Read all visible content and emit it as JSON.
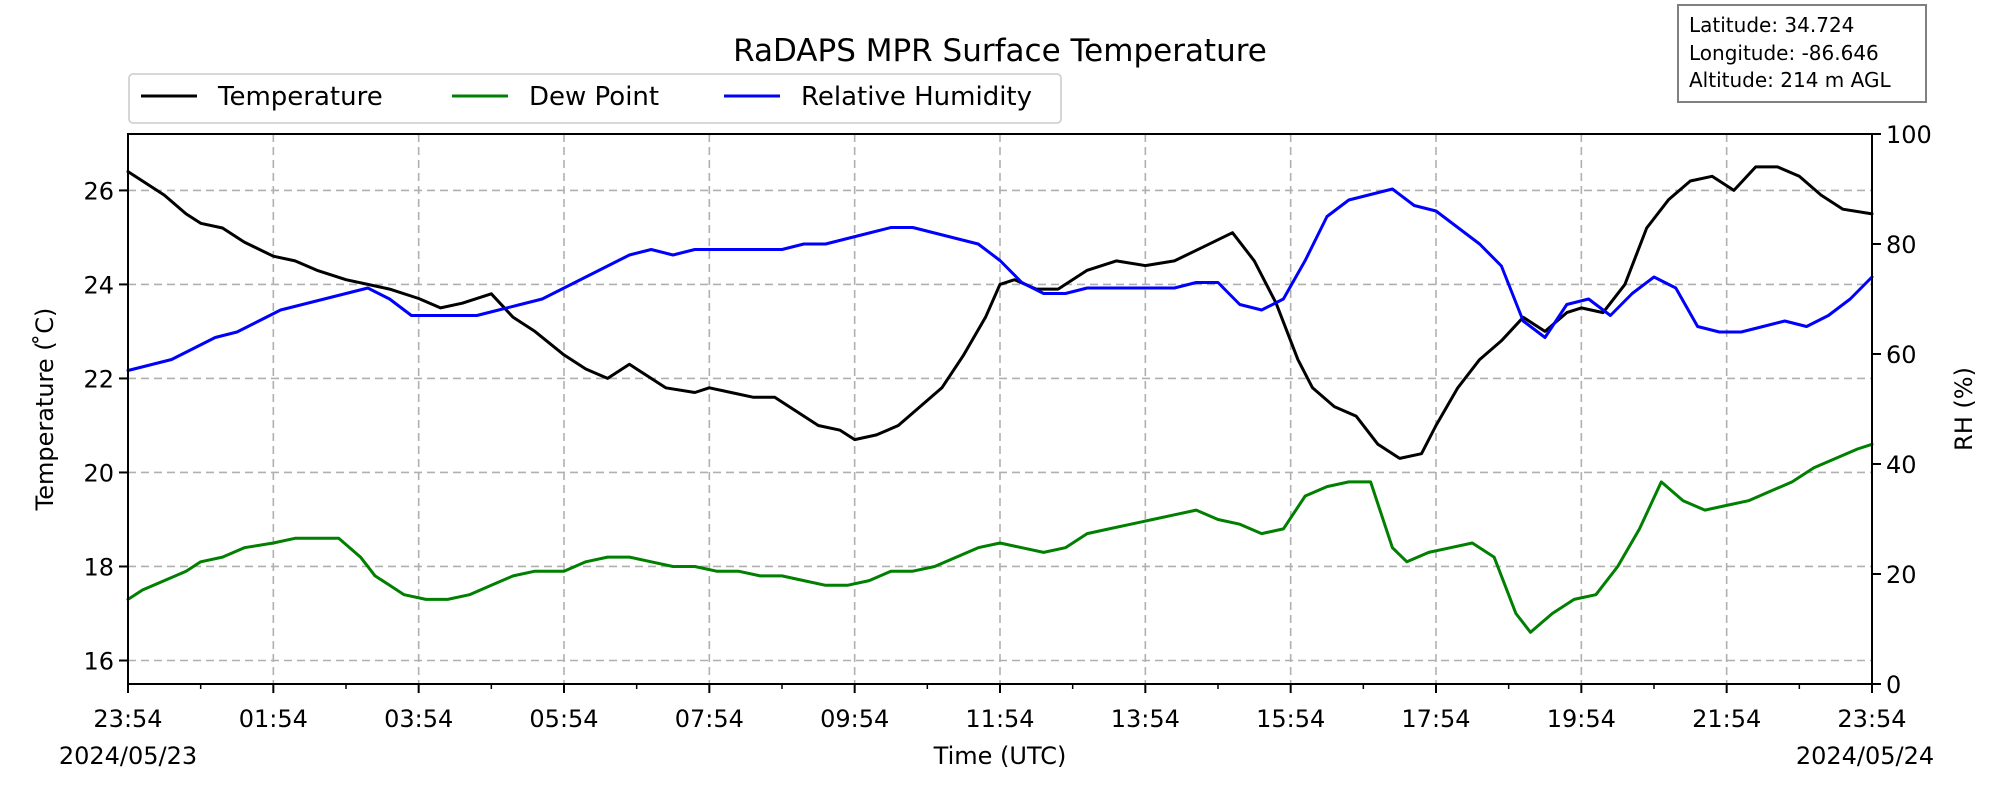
{
  "chart_data": {
    "type": "line",
    "title": "RaDAPS MPR Surface Temperature",
    "xlabel": "Time (UTC)",
    "ylabel": "Temperature ($^\\circ$C)",
    "ylabel_display": "Temperature ( ̊C)",
    "y2label": "RH (%)",
    "x_ticks": [
      "23:54",
      "01:54",
      "03:54",
      "05:54",
      "07:54",
      "09:54",
      "11:54",
      "13:54",
      "15:54",
      "17:54",
      "19:54",
      "21:54",
      "23:54"
    ],
    "x_range_hours": [
      0,
      24
    ],
    "date_start": "2024/05/23",
    "date_end": "2024/05/24",
    "ylim": [
      15.5,
      27.2
    ],
    "yticks": [
      16,
      18,
      20,
      22,
      24,
      26
    ],
    "y2lim": [
      0,
      100
    ],
    "y2ticks": [
      0,
      20,
      40,
      60,
      80,
      100
    ],
    "grid": true,
    "legend_position": "top-left",
    "info_box": {
      "latitude": "Latitude: 34.724",
      "longitude": "Longitude: -86.646",
      "altitude": "Altitude: 214 m AGL"
    },
    "series": [
      {
        "name": "Temperature",
        "axis": "left",
        "color": "#000000",
        "x": [
          0,
          0.2,
          0.5,
          0.8,
          1.0,
          1.3,
          1.6,
          2.0,
          2.3,
          2.6,
          3.0,
          3.3,
          3.6,
          4.0,
          4.3,
          4.6,
          5.0,
          5.3,
          5.6,
          6.0,
          6.3,
          6.6,
          6.9,
          7.2,
          7.4,
          7.8,
          8.0,
          8.3,
          8.6,
          8.9,
          9.2,
          9.5,
          9.8,
          10.0,
          10.3,
          10.6,
          10.9,
          11.2,
          11.5,
          11.8,
          12.0,
          12.2,
          12.5,
          12.8,
          13.2,
          13.6,
          14.0,
          14.4,
          14.8,
          15.2,
          15.5,
          15.8,
          16.1,
          16.3,
          16.6,
          16.9,
          17.2,
          17.5,
          17.8,
          18.0,
          18.3,
          18.6,
          18.9,
          19.2,
          19.5,
          19.8,
          20.0,
          20.3,
          20.6,
          20.9,
          21.2,
          21.5,
          21.8,
          22.1,
          22.4,
          22.7,
          23.0,
          23.3,
          23.6,
          24.0
        ],
        "values": [
          26.4,
          26.2,
          25.9,
          25.5,
          25.3,
          25.2,
          24.9,
          24.6,
          24.5,
          24.3,
          24.1,
          24.0,
          23.9,
          23.7,
          23.5,
          23.6,
          23.8,
          23.3,
          23.0,
          22.5,
          22.2,
          22.0,
          22.3,
          22.0,
          21.8,
          21.7,
          21.8,
          21.7,
          21.6,
          21.6,
          21.3,
          21.0,
          20.9,
          20.7,
          20.8,
          21.0,
          21.4,
          21.8,
          22.5,
          23.3,
          24.0,
          24.1,
          23.9,
          23.9,
          24.3,
          24.5,
          24.4,
          24.5,
          24.8,
          25.1,
          24.5,
          23.6,
          22.4,
          21.8,
          21.4,
          21.2,
          20.6,
          20.3,
          20.4,
          21.0,
          21.8,
          22.4,
          22.8,
          23.3,
          23.0,
          23.4,
          23.5,
          23.4,
          24.0,
          25.2,
          25.8,
          26.2,
          26.3,
          26.0,
          26.5,
          26.5,
          26.3,
          25.9,
          25.6,
          25.5
        ]
      },
      {
        "name": "Dew Point",
        "axis": "left",
        "color": "#007f00",
        "x": [
          0,
          0.2,
          0.5,
          0.8,
          1.0,
          1.3,
          1.6,
          2.0,
          2.3,
          2.6,
          2.9,
          3.2,
          3.4,
          3.6,
          3.8,
          4.1,
          4.4,
          4.7,
          5.0,
          5.3,
          5.6,
          6.0,
          6.3,
          6.6,
          6.9,
          7.2,
          7.5,
          7.8,
          8.1,
          8.4,
          8.7,
          9.0,
          9.3,
          9.6,
          9.9,
          10.2,
          10.5,
          10.8,
          11.1,
          11.4,
          11.7,
          12.0,
          12.3,
          12.6,
          12.9,
          13.2,
          13.5,
          13.8,
          14.1,
          14.4,
          14.7,
          15.0,
          15.3,
          15.6,
          15.9,
          16.2,
          16.5,
          16.8,
          17.1,
          17.4,
          17.6,
          17.9,
          18.2,
          18.5,
          18.8,
          19.1,
          19.3,
          19.6,
          19.9,
          20.2,
          20.5,
          20.8,
          21.1,
          21.4,
          21.7,
          22.0,
          22.3,
          22.6,
          22.9,
          23.2,
          23.5,
          23.8,
          24.0
        ],
        "values": [
          17.3,
          17.5,
          17.7,
          17.9,
          18.1,
          18.2,
          18.4,
          18.5,
          18.6,
          18.6,
          18.6,
          18.2,
          17.8,
          17.6,
          17.4,
          17.3,
          17.3,
          17.4,
          17.6,
          17.8,
          17.9,
          17.9,
          18.1,
          18.2,
          18.2,
          18.1,
          18.0,
          18.0,
          17.9,
          17.9,
          17.8,
          17.8,
          17.7,
          17.6,
          17.6,
          17.7,
          17.9,
          17.9,
          18.0,
          18.2,
          18.4,
          18.5,
          18.4,
          18.3,
          18.4,
          18.7,
          18.8,
          18.9,
          19.0,
          19.1,
          19.2,
          19.0,
          18.9,
          18.7,
          18.8,
          19.5,
          19.7,
          19.8,
          19.8,
          18.4,
          18.1,
          18.3,
          18.4,
          18.5,
          18.2,
          17.0,
          16.6,
          17.0,
          17.3,
          17.4,
          18.0,
          18.8,
          19.8,
          19.4,
          19.2,
          19.3,
          19.4,
          19.6,
          19.8,
          20.1,
          20.3,
          20.5,
          20.6
        ]
      },
      {
        "name": "Relative Humidity",
        "axis": "right",
        "color": "#0000ff",
        "x": [
          0,
          0.3,
          0.6,
          0.9,
          1.2,
          1.5,
          1.8,
          2.1,
          2.4,
          2.7,
          3.0,
          3.3,
          3.6,
          3.9,
          4.2,
          4.5,
          4.8,
          5.1,
          5.4,
          5.7,
          6.0,
          6.3,
          6.6,
          6.9,
          7.2,
          7.5,
          7.8,
          8.1,
          8.4,
          8.7,
          9.0,
          9.3,
          9.6,
          9.9,
          10.2,
          10.5,
          10.8,
          11.1,
          11.4,
          11.7,
          12.0,
          12.3,
          12.6,
          12.9,
          13.2,
          13.5,
          13.8,
          14.1,
          14.4,
          14.7,
          15.0,
          15.3,
          15.6,
          15.9,
          16.2,
          16.5,
          16.8,
          17.1,
          17.4,
          17.7,
          18.0,
          18.3,
          18.6,
          18.9,
          19.2,
          19.5,
          19.8,
          20.1,
          20.4,
          20.7,
          21.0,
          21.3,
          21.6,
          21.9,
          22.2,
          22.5,
          22.8,
          23.1,
          23.4,
          23.7,
          24.0
        ],
        "values": [
          57,
          58,
          59,
          61,
          63,
          64,
          66,
          68,
          69,
          70,
          71,
          72,
          70,
          67,
          67,
          67,
          67,
          68,
          69,
          70,
          72,
          74,
          76,
          78,
          79,
          78,
          79,
          79,
          79,
          79,
          79,
          80,
          80,
          81,
          82,
          83,
          83,
          82,
          81,
          80,
          77,
          73,
          71,
          71,
          72,
          72,
          72,
          72,
          72,
          73,
          73,
          69,
          68,
          70,
          77,
          85,
          88,
          89,
          90,
          87,
          86,
          83,
          80,
          76,
          66,
          63,
          69,
          70,
          67,
          71,
          74,
          72,
          65,
          64,
          64,
          65,
          66,
          65,
          67,
          70,
          74
        ]
      }
    ]
  }
}
